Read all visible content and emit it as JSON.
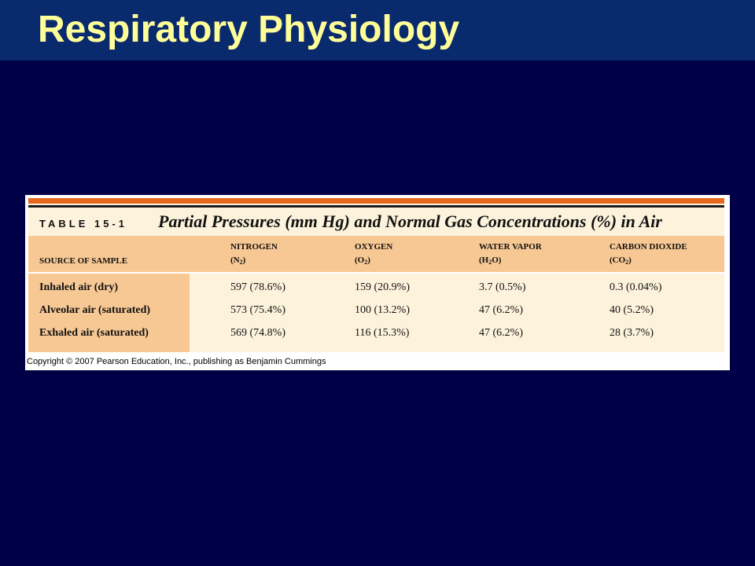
{
  "slide": {
    "title": "Respiratory Physiology"
  },
  "table": {
    "label": "TABLE 15-1",
    "caption": "Partial Pressures (mm Hg) and Normal Gas Concentrations (%) in Air",
    "row_header": "SOURCE OF SAMPLE",
    "columns": [
      {
        "name": "NITROGEN",
        "formula_pre": "(N",
        "formula_sub": "2",
        "formula_post": ")"
      },
      {
        "name": "OXYGEN",
        "formula_pre": "(O",
        "formula_sub": "2",
        "formula_post": ")"
      },
      {
        "name": "WATER VAPOR",
        "formula_pre": "(H",
        "formula_sub": "2",
        "formula_post": "O)"
      },
      {
        "name": "CARBON DIOXIDE",
        "formula_pre": "(CO",
        "formula_sub": "2",
        "formula_post": ")"
      }
    ],
    "rows": [
      {
        "label": "Inhaled air (dry)",
        "values": [
          "597 (78.6%)",
          "159 (20.9%)",
          "3.7 (0.5%)",
          "0.3 (0.04%)"
        ]
      },
      {
        "label": "Alveolar air (saturated)",
        "values": [
          "573 (75.4%)",
          "100 (13.2%)",
          "47 (6.2%)",
          "40 (5.2%)"
        ]
      },
      {
        "label": "Exhaled air (saturated)",
        "values": [
          "569 (74.8%)",
          "116 (15.3%)",
          "47 (6.2%)",
          "28 (3.7%)"
        ]
      }
    ]
  },
  "copyright": "Copyright © 2007 Pearson Education, Inc., publishing as Benjamin Cummings",
  "colors": {
    "background": "#000046",
    "title_bar": "#0a2a6e",
    "title_text": "#ffff99",
    "table_accent": "#e6691e",
    "table_header": "#f7c894",
    "table_body": "#fdf3dc"
  }
}
